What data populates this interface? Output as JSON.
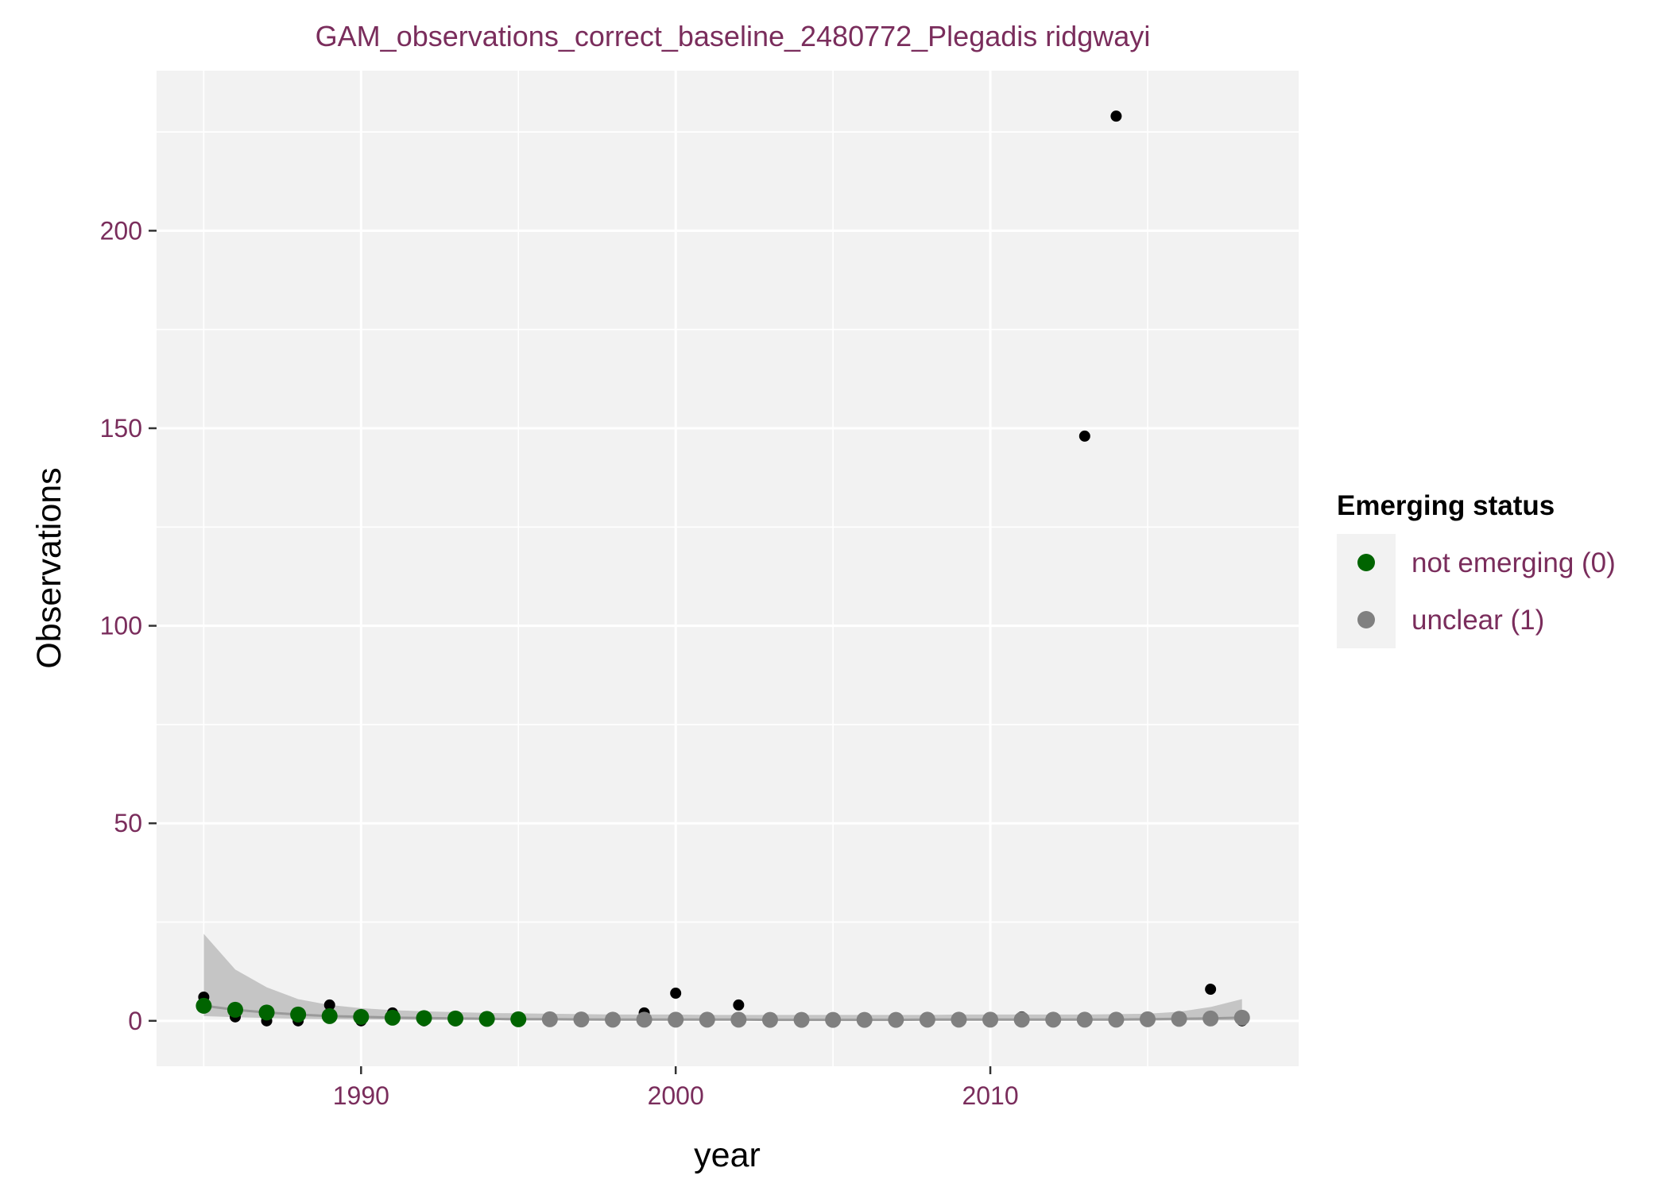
{
  "chart_data": {
    "type": "scatter",
    "title": "GAM_observations_correct_baseline_2480772_Plegadis ridgwayi",
    "xlabel": "year",
    "ylabel": "Observations",
    "xlim": [
      1983.5,
      2019.8
    ],
    "ylim": [
      -11.5,
      240.5
    ],
    "x_ticks": [
      1990,
      2000,
      2010
    ],
    "y_ticks": [
      0,
      50,
      100,
      150,
      200
    ],
    "grid": true,
    "colors": {
      "panel_background": "#f2f2f2",
      "grid": "#ffffff",
      "observed": "#000000",
      "not_emerging": "#006400",
      "unclear": "#808080",
      "ribbon": "#bdbdbd",
      "fit_line": "#9a9a9a",
      "text": "#7a2d5c"
    },
    "observed": {
      "x": [
        1985,
        1986,
        1987,
        1988,
        1989,
        1990,
        1991,
        1992,
        1993,
        1994,
        1995,
        1996,
        1997,
        1998,
        1999,
        2000,
        2001,
        2002,
        2003,
        2004,
        2005,
        2006,
        2007,
        2008,
        2009,
        2010,
        2011,
        2012,
        2013,
        2014,
        2015,
        2016,
        2017,
        2018
      ],
      "y": [
        6,
        1,
        0,
        0,
        4,
        0,
        2,
        0,
        0,
        0,
        0,
        0,
        0,
        0,
        2,
        7,
        0,
        4,
        0,
        0,
        0,
        0,
        0,
        0,
        0,
        0,
        1,
        0,
        148,
        229,
        0,
        0,
        8,
        0
      ]
    },
    "fitted": {
      "x": [
        1985,
        1986,
        1987,
        1988,
        1989,
        1990,
        1991,
        1992,
        1993,
        1994,
        1995,
        1996,
        1997,
        1998,
        1999,
        2000,
        2001,
        2002,
        2003,
        2004,
        2005,
        2006,
        2007,
        2008,
        2009,
        2010,
        2011,
        2012,
        2013,
        2014,
        2015,
        2016,
        2017,
        2018
      ],
      "y": [
        3.8,
        2.8,
        2.1,
        1.6,
        1.2,
        1.0,
        0.8,
        0.7,
        0.6,
        0.5,
        0.4,
        0.4,
        0.35,
        0.3,
        0.3,
        0.3,
        0.3,
        0.3,
        0.25,
        0.25,
        0.25,
        0.25,
        0.25,
        0.3,
        0.3,
        0.3,
        0.3,
        0.3,
        0.3,
        0.3,
        0.4,
        0.5,
        0.6,
        0.8
      ],
      "status": [
        0,
        0,
        0,
        0,
        0,
        0,
        0,
        0,
        0,
        0,
        0,
        1,
        1,
        1,
        1,
        1,
        1,
        1,
        1,
        1,
        1,
        1,
        1,
        1,
        1,
        1,
        1,
        1,
        1,
        1,
        1,
        1,
        1,
        1
      ],
      "ci_upper": [
        22,
        13,
        8.5,
        5.5,
        4,
        3.2,
        2.7,
        2.4,
        2.2,
        2.0,
        1.9,
        1.8,
        1.7,
        1.6,
        1.6,
        1.6,
        1.5,
        1.5,
        1.5,
        1.5,
        1.5,
        1.5,
        1.5,
        1.5,
        1.6,
        1.6,
        1.6,
        1.6,
        1.6,
        1.7,
        1.8,
        2.3,
        3.5,
        5.5
      ],
      "ci_lower": [
        1.2,
        0.9,
        0.7,
        0.5,
        0.4,
        0.3,
        0.3,
        0.2,
        0.2,
        0.2,
        0.1,
        0.1,
        0.1,
        0.1,
        0.1,
        0.1,
        0.1,
        0.1,
        0.05,
        0.05,
        0.05,
        0.05,
        0.05,
        0.05,
        0.05,
        0.05,
        0.05,
        0.05,
        0.05,
        0.05,
        0.05,
        0.1,
        0.1,
        0.1
      ]
    },
    "legend": {
      "title": "Emerging status",
      "position": "right",
      "items": [
        {
          "label": "not emerging (0)",
          "color": "#006400"
        },
        {
          "label": "unclear (1)",
          "color": "#808080"
        }
      ]
    }
  }
}
